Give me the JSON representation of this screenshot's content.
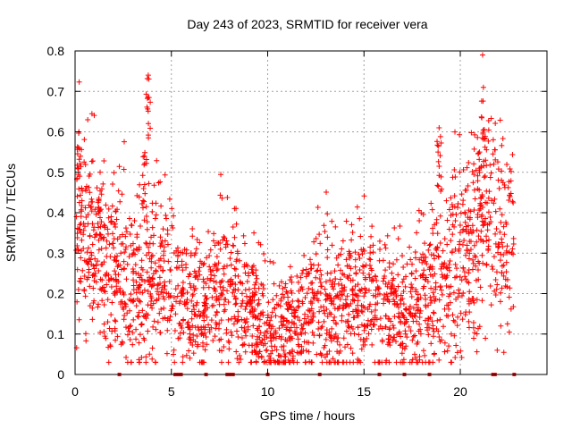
{
  "chart_data": {
    "type": "scatter",
    "title": "Day 243 of 2023, SRMTID for receiver vera",
    "xlabel": "GPS time / hours",
    "ylabel": "SRMTID / TECUs",
    "xlim": [
      0,
      24.5
    ],
    "ylim": [
      0,
      0.8
    ],
    "x_ticks": [
      0,
      5,
      10,
      15,
      20
    ],
    "x_tick_labels": [
      "0",
      "5",
      "10",
      "15",
      "20"
    ],
    "y_ticks": [
      0,
      0.1,
      0.2,
      0.3,
      0.4,
      0.5,
      0.6,
      0.7,
      0.8
    ],
    "y_tick_labels": [
      "0",
      "0.1",
      "0.2",
      "0.3",
      "0.4",
      "0.5",
      "0.6",
      "0.7",
      "0.8"
    ],
    "grid": true,
    "marker": "plus",
    "color": "#ff0000",
    "series": [
      {
        "name": "SRMTID",
        "trend_x": [
          0,
          0.5,
          1,
          1.5,
          2,
          2.5,
          3,
          3.5,
          4,
          4.5,
          5,
          5.5,
          6,
          6.5,
          7,
          7.5,
          8,
          8.5,
          9,
          9.5,
          10,
          10.5,
          11,
          11.5,
          12,
          12.5,
          13,
          13.5,
          14,
          14.5,
          15,
          15.5,
          16,
          16.5,
          17,
          17.5,
          18,
          18.5,
          19,
          19.5,
          20,
          20.5,
          21,
          21.5,
          22,
          22.5
        ],
        "trend_y": [
          0.3,
          0.33,
          0.3,
          0.28,
          0.26,
          0.25,
          0.22,
          0.2,
          0.24,
          0.25,
          0.22,
          0.19,
          0.16,
          0.17,
          0.19,
          0.21,
          0.2,
          0.18,
          0.16,
          0.14,
          0.11,
          0.1,
          0.11,
          0.12,
          0.13,
          0.15,
          0.16,
          0.17,
          0.18,
          0.19,
          0.19,
          0.18,
          0.16,
          0.15,
          0.15,
          0.16,
          0.18,
          0.22,
          0.24,
          0.25,
          0.28,
          0.32,
          0.36,
          0.4,
          0.36,
          0.31
        ],
        "peaks": [
          {
            "x": 0.2,
            "y": 0.6
          },
          {
            "x": 1.3,
            "y": 0.5
          },
          {
            "x": 3.8,
            "y": 0.74
          },
          {
            "x": 3.6,
            "y": 0.54
          },
          {
            "x": 18.9,
            "y": 0.61
          },
          {
            "x": 21.2,
            "y": 0.71
          },
          {
            "x": 21.0,
            "y": 0.55
          }
        ],
        "points_per_hour": 100
      }
    ],
    "zero_markers_x": [
      2.3,
      5.2,
      5.3,
      5.4,
      5.5,
      6.8,
      7.9,
      8.0,
      8.1,
      8.2,
      10.0,
      12.7,
      15.8,
      17.1,
      18.4,
      21.7,
      21.8,
      22.8
    ]
  }
}
